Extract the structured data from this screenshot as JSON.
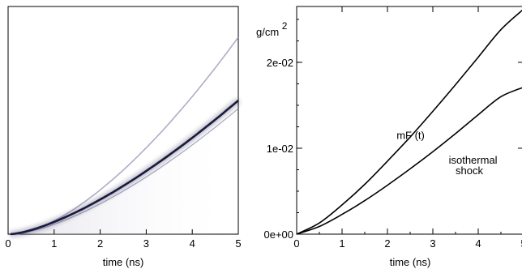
{
  "chart_data": [
    {
      "type": "heatmap",
      "xlabel": "time (ns)",
      "xlim": [
        0,
        5
      ],
      "x_ticks": [
        "0",
        "1",
        "2",
        "3",
        "4",
        "5"
      ],
      "grid": false,
      "image_description_colors": {
        "background": "#ffffff",
        "trace": "#1a1a40"
      }
    },
    {
      "type": "line",
      "xlabel": "time (ns)",
      "ylabel_text": "g/cm",
      "ylabel_sup": "2",
      "xlim": [
        0,
        5
      ],
      "ylim": [
        0,
        0.0265
      ],
      "x_ticks": [
        "0",
        "1",
        "2",
        "3",
        "4",
        "5"
      ],
      "y_ticks": [
        {
          "value": 0,
          "label": "0e+00"
        },
        {
          "value": 0.01,
          "label": "1e-02"
        },
        {
          "value": 0.02,
          "label": "2e-02"
        }
      ],
      "grid": false,
      "series": [
        {
          "name": "mF (t)",
          "x": [
            0,
            0.5,
            1,
            1.5,
            2,
            2.5,
            3,
            3.5,
            4,
            4.5,
            5
          ],
          "y": [
            0,
            0.0013,
            0.0034,
            0.0058,
            0.0085,
            0.0113,
            0.0143,
            0.0174,
            0.0206,
            0.0238,
            0.0262
          ]
        },
        {
          "name": "isothermal shock",
          "x": [
            0,
            0.5,
            1,
            1.5,
            2,
            2.5,
            3,
            3.5,
            4,
            4.5,
            5
          ],
          "y": [
            0,
            0.0009,
            0.0023,
            0.0039,
            0.0057,
            0.0076,
            0.0096,
            0.0117,
            0.0139,
            0.016,
            0.0171
          ]
        }
      ],
      "annotations": [
        {
          "text": "mF (t)",
          "x": 2.2,
          "y": 0.0111
        },
        {
          "text": "isothermal",
          "x": 3.35,
          "y": 0.0082
        },
        {
          "text": "shock",
          "x": 3.5,
          "y": 0.007
        }
      ]
    }
  ]
}
